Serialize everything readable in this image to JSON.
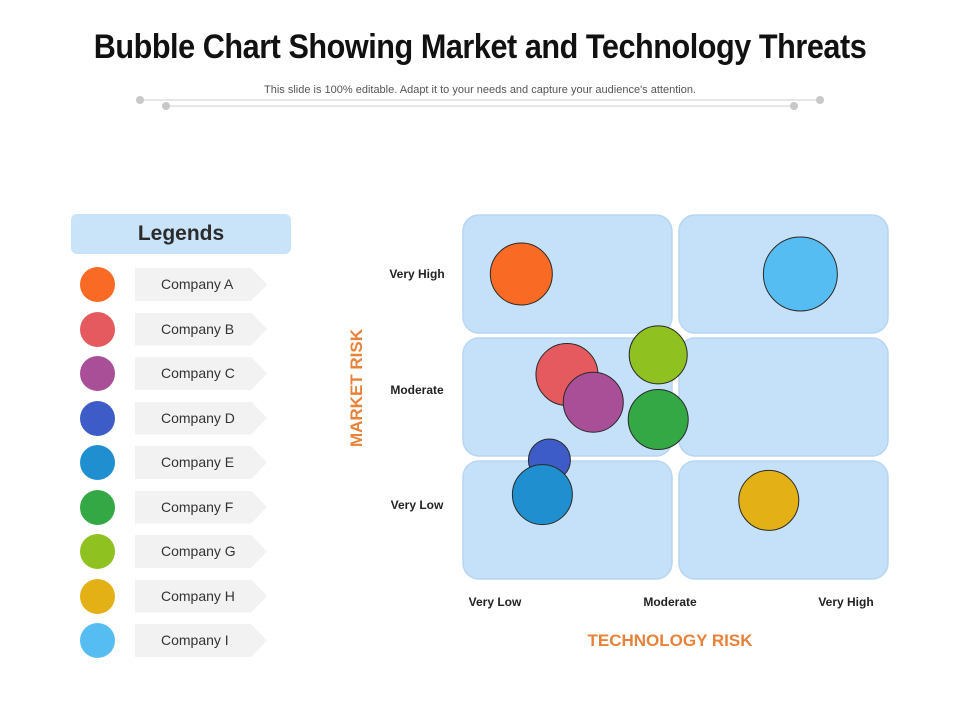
{
  "slide": {
    "title": "Bubble Chart Showing Market and Technology Threats",
    "subtitle": "This slide is 100% editable. Adapt it to your needs and capture your audience's attention."
  },
  "legend": {
    "title": "Legends",
    "items": [
      {
        "label": "Company A",
        "color": "#f96a24"
      },
      {
        "label": "Company B",
        "color": "#e55a5e"
      },
      {
        "label": "Company C",
        "color": "#a94f97"
      },
      {
        "label": "Company D",
        "color": "#3d5cc8"
      },
      {
        "label": "Company E",
        "color": "#1f8fd0"
      },
      {
        "label": "Company F",
        "color": "#33a845"
      },
      {
        "label": "Company G",
        "color": "#8fc121"
      },
      {
        "label": "Company H",
        "color": "#e3b015"
      },
      {
        "label": "Company I",
        "color": "#56bdf3"
      }
    ]
  },
  "chart_data": {
    "type": "scatter",
    "title": "Bubble Chart Showing Market and Technology Threats",
    "xlabel": "TECHNOLOGY RISK",
    "ylabel": "MARKET RISK",
    "x_ticks": [
      "Very Low",
      "Moderate",
      "Very High"
    ],
    "y_ticks": [
      "Very Low",
      "Moderate",
      "Very High"
    ],
    "xlim": [
      0,
      2
    ],
    "ylim": [
      0,
      2
    ],
    "grid": "2x3 quadrant panels",
    "legend_position": "left",
    "quadrant_color": "#c5e1f9",
    "axis_label_color": "#e8823a",
    "points": [
      {
        "name": "Company A",
        "x": 0.15,
        "y": 2.0,
        "size": 31,
        "color": "#f96a24"
      },
      {
        "name": "Company B",
        "x": 0.41,
        "y": 1.13,
        "size": 31,
        "color": "#e55a5e"
      },
      {
        "name": "Company C",
        "x": 0.56,
        "y": 0.89,
        "size": 30,
        "color": "#a94f97"
      },
      {
        "name": "Company D",
        "x": 0.31,
        "y": 0.39,
        "size": 21,
        "color": "#3d5cc8"
      },
      {
        "name": "Company E",
        "x": 0.27,
        "y": 0.09,
        "size": 30,
        "color": "#1f8fd0"
      },
      {
        "name": "Company F",
        "x": 0.93,
        "y": 0.74,
        "size": 30,
        "color": "#33a845"
      },
      {
        "name": "Company G",
        "x": 0.93,
        "y": 1.3,
        "size": 29,
        "color": "#8fc121"
      },
      {
        "name": "Company H",
        "x": 1.56,
        "y": 0.04,
        "size": 30,
        "color": "#e3b015"
      },
      {
        "name": "Company I",
        "x": 1.74,
        "y": 2.0,
        "size": 37,
        "color": "#56bdf3"
      }
    ]
  }
}
